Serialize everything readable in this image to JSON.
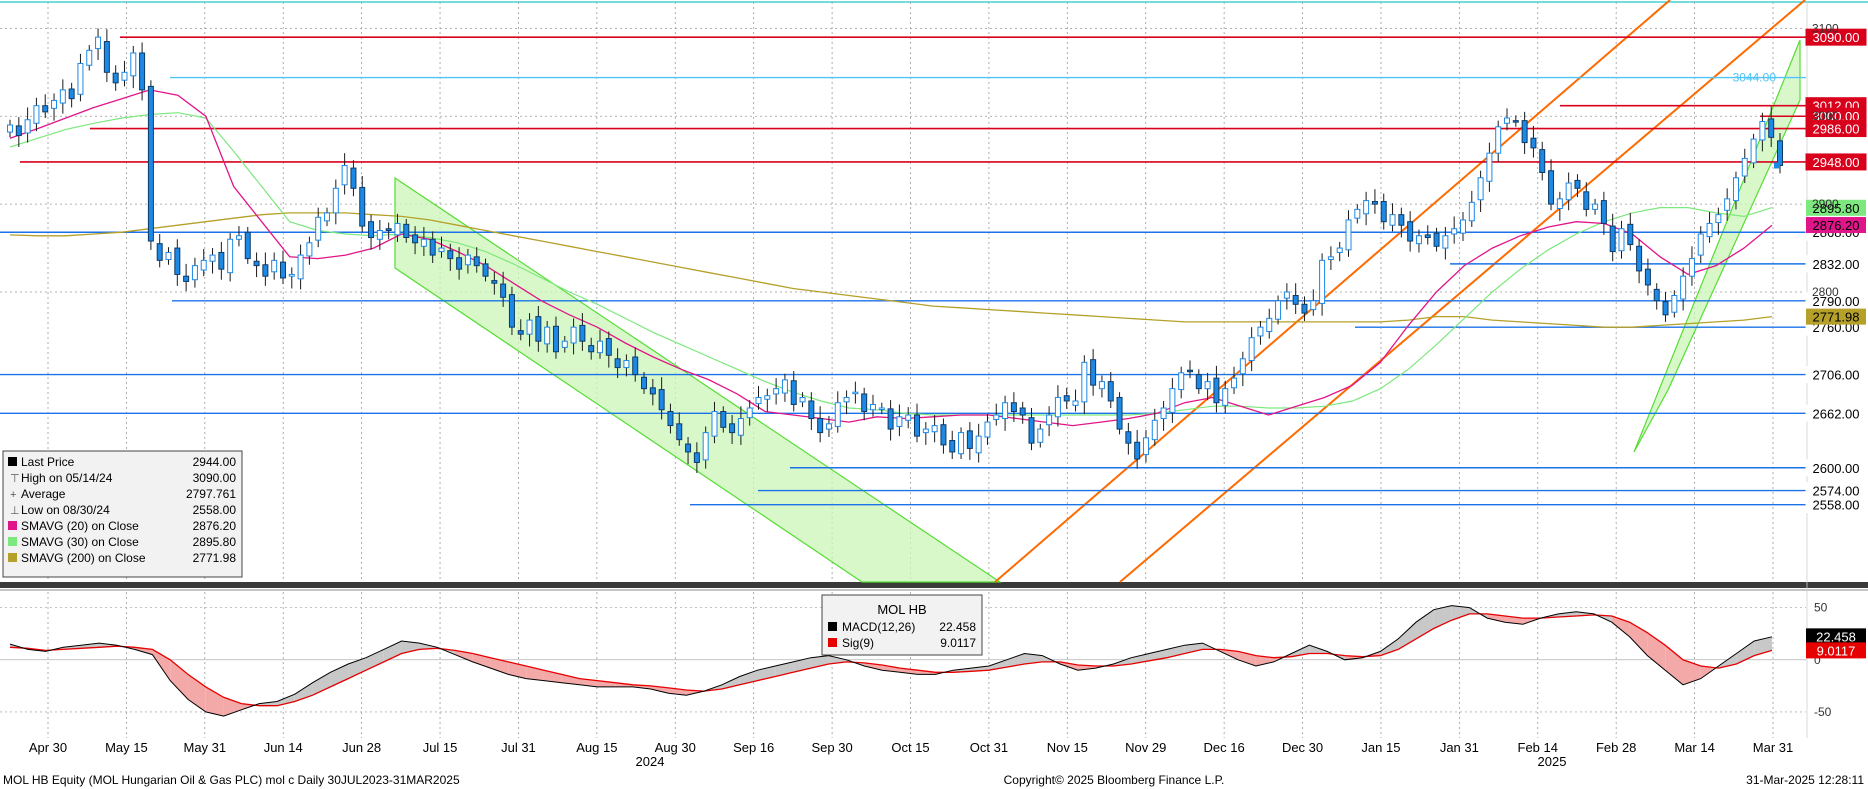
{
  "colors": {
    "candle": "#1e88e5",
    "candle_dark": "#0d3b66",
    "sma20": "#e0158a",
    "sma30": "#7de87d",
    "sma200": "#b5a02a",
    "level_red": "#d9001b",
    "level_blue": "#1a73e8",
    "trend_orange": "#ff6a00",
    "channel_green_fill": "#ccf5b8",
    "channel_green_edge": "#55dd33",
    "macd_line": "#000000",
    "sig_line": "#e60000",
    "macd_fill_pos": "#c8c8c8",
    "macd_fill_neg": "#f4a9a9"
  },
  "footer": {
    "left": "MOL HB Equity (MOL Hungarian Oil & Gas PLC) mol c  Daily 30JUL2023-31MAR2025",
    "center": "Copyright© 2025 Bloomberg Finance L.P.",
    "right": "31-Mar-2025 12:28:11"
  },
  "legend_main": {
    "rows": [
      {
        "label": "Last Price",
        "value": "2944.00",
        "swatch": "#000000"
      },
      {
        "label": "High on 05/14/24",
        "value": "3090.00",
        "swatch": "none"
      },
      {
        "label": "Average",
        "value": "2797.761",
        "swatch": "none"
      },
      {
        "label": "Low on 08/30/24",
        "value": "2558.00",
        "swatch": "none"
      },
      {
        "label": "SMAVG (20)  on Close",
        "value": "2876.20",
        "swatch": "#e0158a"
      },
      {
        "label": "SMAVG (30)  on Close",
        "value": "2895.80",
        "swatch": "#7de87d"
      },
      {
        "label": "SMAVG (200)  on Close",
        "value": "2771.98",
        "swatch": "#b5a02a"
      }
    ]
  },
  "legend_macd": {
    "title": "MOL HB",
    "rows": [
      {
        "label": "MACD(12,26)",
        "value": "22.458",
        "swatch": "#000000"
      },
      {
        "label": "Sig(9)",
        "value": "9.0117",
        "swatch": "#e60000"
      }
    ]
  },
  "chart_data": [
    {
      "type": "candlestick",
      "title": "MOL HB Equity",
      "x_ticks": [
        "Apr 30",
        "May 15",
        "May 31",
        "Jun 14",
        "Jun 28",
        "Jul 15",
        "Jul 31",
        "Aug 15",
        "Aug 30",
        "Sep 16",
        "Sep 30",
        "Oct 15",
        "Oct 31",
        "Nov 15",
        "Nov 29",
        "Dec 16",
        "Dec 30",
        "Jan 15",
        "Jan 31",
        "Feb 14",
        "Feb 28",
        "Mar 14",
        "Mar 31"
      ],
      "x_years": [
        "2024",
        "2025"
      ],
      "y_ticks": [
        2800,
        2900,
        3000,
        3100
      ],
      "y_tick_labels": [
        "2800",
        "2900",
        "3000",
        "3100"
      ],
      "ylim": [
        2470,
        3130
      ],
      "horizontal_levels": [
        {
          "value": 3090.0,
          "label": "3090.00",
          "color": "red"
        },
        {
          "value": 3044.0,
          "label": "3044.00",
          "color": "cyan"
        },
        {
          "value": 3012.0,
          "label": "3012.00",
          "color": "red"
        },
        {
          "value": 3000.0,
          "label": "3000.00",
          "color": "red"
        },
        {
          "value": 2986.0,
          "label": "2986.00",
          "color": "red"
        },
        {
          "value": 2948.0,
          "label": "2948.00",
          "color": "red"
        },
        {
          "value": 2868.0,
          "label": "2868.00",
          "color": "blue"
        },
        {
          "value": 2832.0,
          "label": "2832.00",
          "color": "blue"
        },
        {
          "value": 2790.0,
          "label": "2790.00",
          "color": "blue"
        },
        {
          "value": 2760.0,
          "label": "2760.00",
          "color": "blue"
        },
        {
          "value": 2706.0,
          "label": "2706.00",
          "color": "blue"
        },
        {
          "value": 2662.0,
          "label": "2662.00",
          "color": "blue"
        },
        {
          "value": 2600.0,
          "label": "2600.00",
          "color": "blue"
        },
        {
          "value": 2574.0,
          "label": "2574.00",
          "color": "blue"
        },
        {
          "value": 2558.0,
          "label": "2558.00",
          "color": "blue"
        }
      ],
      "right_labels": [
        {
          "value": 2895.8,
          "label": "2895.80",
          "color": "#7de87d"
        },
        {
          "value": 2876.2,
          "label": "2876.20",
          "color": "#e0158a"
        },
        {
          "value": 2771.98,
          "label": "2771.98",
          "color": "#b5a02a"
        }
      ],
      "last_price": 2944.0,
      "ohlc_close": [
        2990,
        2978,
        2996,
        3012,
        3005,
        3018,
        3030,
        3020,
        3060,
        3075,
        3090,
        3050,
        3038,
        3050,
        3072,
        3030,
        2858,
        2836,
        2845,
        2820,
        2812,
        2830,
        2836,
        2842,
        2826,
        2860,
        2864,
        2838,
        2830,
        2818,
        2836,
        2816,
        2820,
        2842,
        2856,
        2885,
        2890,
        2918,
        2944,
        2918,
        2875,
        2862,
        2870,
        2870,
        2878,
        2862,
        2856,
        2860,
        2842,
        2850,
        2838,
        2826,
        2842,
        2830,
        2818,
        2810,
        2794,
        2760,
        2752,
        2768,
        2744,
        2760,
        2732,
        2744,
        2760,
        2744,
        2732,
        2744,
        2728,
        2714,
        2722,
        2706,
        2690,
        2684,
        2666,
        2648,
        2632,
        2618,
        2606,
        2640,
        2664,
        2646,
        2640,
        2656,
        2668,
        2680,
        2682,
        2690,
        2700,
        2672,
        2680,
        2656,
        2640,
        2650,
        2674,
        2680,
        2686,
        2664,
        2672,
        2668,
        2644,
        2658,
        2660,
        2636,
        2644,
        2648,
        2626,
        2618,
        2640,
        2622,
        2636,
        2652,
        2660,
        2674,
        2664,
        2660,
        2628,
        2644,
        2660,
        2680,
        2676,
        2676,
        2720,
        2694,
        2698,
        2676,
        2644,
        2628,
        2610,
        2634,
        2654,
        2668,
        2690,
        2708,
        2710,
        2690,
        2698,
        2674,
        2690,
        2702,
        2724,
        2748,
        2760,
        2770,
        2790,
        2800,
        2786,
        2776,
        2790,
        2836,
        2840,
        2850,
        2882,
        2894,
        2904,
        2900,
        2880,
        2888,
        2876,
        2858,
        2864,
        2862,
        2852,
        2864,
        2872,
        2882,
        2902,
        2930,
        2958,
        2988,
        2998,
        2994,
        2970,
        2964,
        2936,
        2900,
        2906,
        2924,
        2918,
        2894,
        2900,
        2878,
        2846,
        2872,
        2854,
        2824,
        2808,
        2790,
        2774,
        2796,
        2818,
        2838,
        2866,
        2878,
        2888,
        2906,
        2930,
        2952,
        2974,
        2994,
        2976,
        2944
      ],
      "sma20_series": [
        2975,
        2986,
        2998,
        3010,
        3020,
        3030,
        3024,
        3000,
        2920,
        2880,
        2840,
        2838,
        2842,
        2850,
        2866,
        2860,
        2846,
        2830,
        2810,
        2790,
        2774,
        2760,
        2742,
        2726,
        2712,
        2700,
        2684,
        2664,
        2660,
        2656,
        2652,
        2658,
        2656,
        2658,
        2660,
        2660,
        2656,
        2652,
        2648,
        2652,
        2656,
        2662,
        2674,
        2680,
        2670,
        2660,
        2670,
        2680,
        2694,
        2720,
        2762,
        2800,
        2830,
        2850,
        2864,
        2874,
        2880,
        2878,
        2866,
        2840,
        2820,
        2830,
        2850,
        2876
      ],
      "sma30_series": [
        2965,
        2975,
        2985,
        2992,
        2998,
        3002,
        3004,
        2998,
        2960,
        2920,
        2880,
        2870,
        2866,
        2864,
        2866,
        2862,
        2856,
        2846,
        2832,
        2816,
        2800,
        2786,
        2770,
        2754,
        2740,
        2726,
        2712,
        2698,
        2686,
        2676,
        2668,
        2666,
        2662,
        2660,
        2660,
        2660,
        2660,
        2660,
        2660,
        2660,
        2660,
        2662,
        2666,
        2670,
        2670,
        2668,
        2668,
        2670,
        2676,
        2690,
        2712,
        2740,
        2770,
        2800,
        2826,
        2848,
        2866,
        2880,
        2890,
        2896,
        2896,
        2890,
        2886,
        2896
      ],
      "sma200_series": [
        2865,
        2864,
        2864,
        2866,
        2868,
        2872,
        2876,
        2880,
        2884,
        2888,
        2890,
        2890,
        2890,
        2888,
        2886,
        2882,
        2876,
        2870,
        2864,
        2858,
        2852,
        2846,
        2840,
        2834,
        2828,
        2822,
        2816,
        2810,
        2804,
        2800,
        2796,
        2792,
        2788,
        2784,
        2782,
        2780,
        2778,
        2776,
        2774,
        2772,
        2770,
        2768,
        2766,
        2766,
        2766,
        2766,
        2766,
        2766,
        2766,
        2766,
        2768,
        2772,
        2772,
        2768,
        2766,
        2764,
        2762,
        2760,
        2760,
        2762,
        2764,
        2766,
        2768,
        2772
      ]
    },
    {
      "type": "line",
      "title": "MOL HB",
      "series": [
        {
          "name": "MACD(12,26)",
          "values": [
            15,
            10,
            8,
            12,
            14,
            16,
            14,
            10,
            5,
            -20,
            -38,
            -50,
            -54,
            -48,
            -42,
            -40,
            -33,
            -22,
            -12,
            -4,
            2,
            10,
            18,
            16,
            12,
            5,
            -2,
            -8,
            -14,
            -18,
            -20,
            -22,
            -24,
            -26,
            -26,
            -26,
            -28,
            -32,
            -34,
            -30,
            -24,
            -16,
            -10,
            -6,
            -2,
            2,
            4,
            0,
            -6,
            -10,
            -12,
            -14,
            -14,
            -10,
            -8,
            -6,
            0,
            6,
            4,
            -4,
            -10,
            -8,
            -4,
            2,
            6,
            10,
            14,
            16,
            8,
            0,
            -6,
            -2,
            6,
            14,
            8,
            0,
            2,
            8,
            20,
            36,
            48,
            52,
            50,
            40,
            36,
            34,
            40,
            44,
            46,
            44,
            36,
            22,
            4,
            -10,
            -24,
            -18,
            -6,
            6,
            18,
            22
          ]
        },
        {
          "name": "Sig(9)",
          "values": [
            12,
            11,
            9,
            10,
            11,
            12,
            13,
            12,
            10,
            0,
            -14,
            -26,
            -36,
            -42,
            -44,
            -44,
            -40,
            -34,
            -26,
            -18,
            -10,
            -2,
            6,
            10,
            11,
            9,
            6,
            2,
            -2,
            -6,
            -10,
            -14,
            -18,
            -20,
            -22,
            -24,
            -25,
            -27,
            -29,
            -30,
            -28,
            -24,
            -20,
            -16,
            -12,
            -8,
            -4,
            -2,
            -3,
            -5,
            -8,
            -10,
            -12,
            -12,
            -11,
            -10,
            -7,
            -4,
            -2,
            -2,
            -5,
            -6,
            -6,
            -4,
            -1,
            2,
            6,
            10,
            10,
            8,
            4,
            2,
            3,
            6,
            6,
            4,
            3,
            4,
            10,
            20,
            30,
            38,
            44,
            44,
            42,
            40,
            40,
            41,
            42,
            43,
            42,
            36,
            26,
            14,
            0,
            -6,
            -8,
            -4,
            4,
            9
          ]
        }
      ],
      "y_ticks": [
        50,
        0,
        -50
      ],
      "y_tick_labels": [
        "50",
        "0",
        "-50"
      ],
      "ylim": [
        -75,
        65
      ],
      "last_values": [
        {
          "label": "22.458",
          "value": 22.458,
          "color": "#000000"
        },
        {
          "label": "9.0117",
          "value": 9.0117,
          "color": "#e60000"
        }
      ]
    }
  ]
}
